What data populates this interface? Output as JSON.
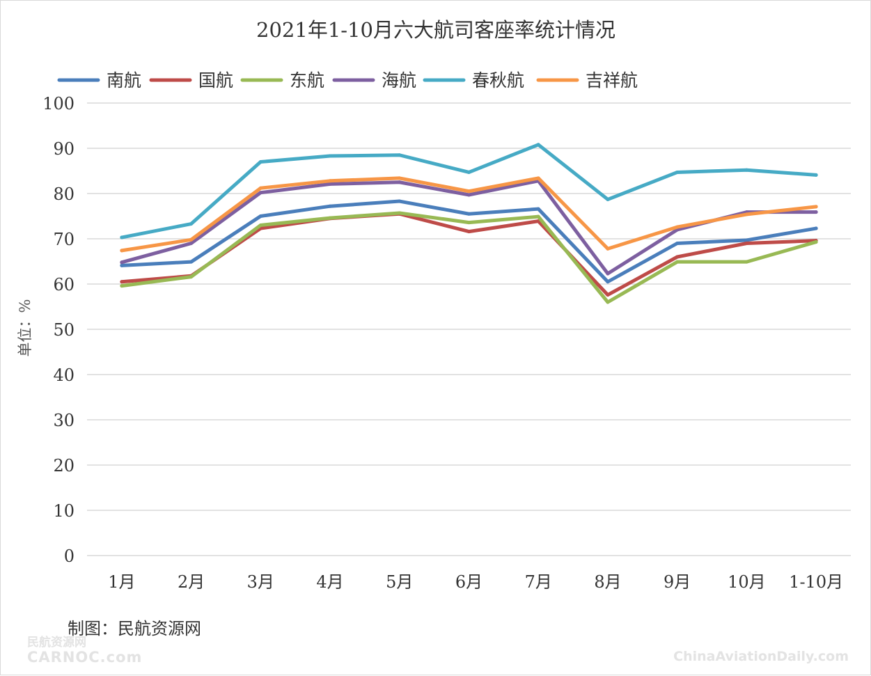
{
  "chart_data": {
    "type": "line",
    "title": "2021年1-10月六大航司客座率统计情况",
    "ylabel": "单位：%",
    "xlabel": "",
    "categories": [
      "1月",
      "2月",
      "3月",
      "4月",
      "5月",
      "6月",
      "7月",
      "8月",
      "9月",
      "10月",
      "1-10月"
    ],
    "ylim": [
      0,
      100
    ],
    "yticks": [
      "0",
      "10",
      "20",
      "30",
      "40",
      "50",
      "60",
      "70",
      "80",
      "90",
      "100"
    ],
    "grid": true,
    "legend_position": "top",
    "series": [
      {
        "name": "南航",
        "color": "#4a7ebb",
        "values": [
          64.1,
          64.9,
          75.0,
          77.2,
          78.3,
          75.5,
          76.6,
          60.5,
          69.0,
          69.7,
          72.3
        ]
      },
      {
        "name": "国航",
        "color": "#be4b48",
        "values": [
          60.5,
          61.8,
          72.3,
          74.5,
          75.5,
          71.6,
          73.9,
          57.6,
          66.0,
          69.0,
          69.6
        ]
      },
      {
        "name": "东航",
        "color": "#98b954",
        "values": [
          59.6,
          61.6,
          73.0,
          74.6,
          75.7,
          73.6,
          74.9,
          56.0,
          64.9,
          64.9,
          69.3
        ]
      },
      {
        "name": "海航",
        "color": "#7d5fa0",
        "values": [
          64.8,
          69.0,
          80.2,
          82.1,
          82.5,
          79.7,
          82.8,
          62.3,
          72.0,
          75.9,
          75.9
        ]
      },
      {
        "name": "春秋航",
        "color": "#46aac5",
        "values": [
          70.3,
          73.3,
          87.0,
          88.3,
          88.5,
          84.7,
          90.8,
          78.7,
          84.7,
          85.2,
          84.1
        ]
      },
      {
        "name": "吉祥航",
        "color": "#f79646",
        "values": [
          67.4,
          69.8,
          81.2,
          82.8,
          83.4,
          80.5,
          83.4,
          67.8,
          72.6,
          75.4,
          77.1
        ]
      }
    ]
  },
  "credit": "制图：民航资源网",
  "watermark_left_cn": "民航资源网",
  "watermark_left_en": "CARNOC.com",
  "watermark_right": "ChinaAviationDaily.com"
}
